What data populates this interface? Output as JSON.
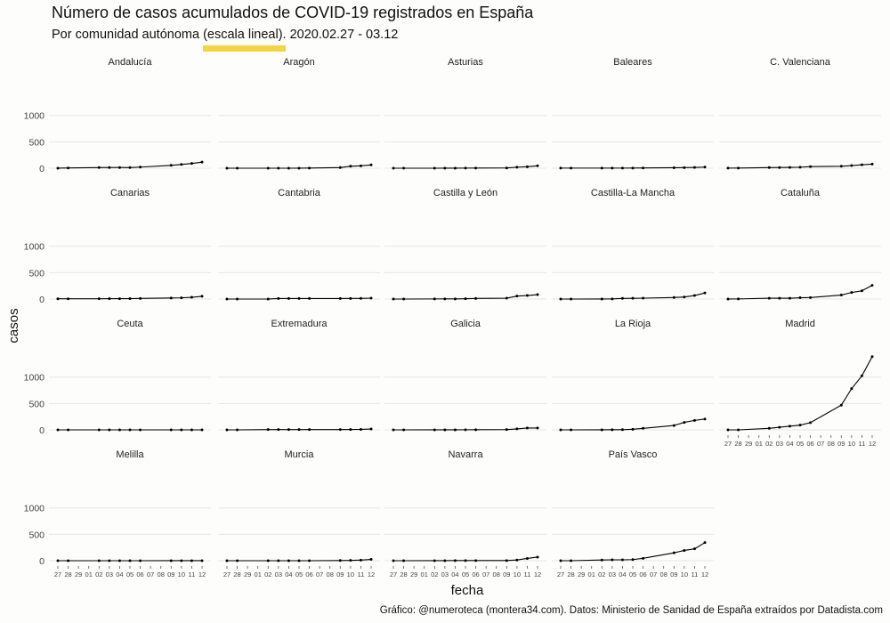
{
  "title": "Número de casos acumulados de COVID-19 registrados en España",
  "subtitle": "Por comunidad autónoma (escala lineal). 2020.02.27 - 03.12",
  "caption": "Gráfico: @numeroteca (montera34.com). Datos: Ministerio de Sanidad de España extraídos por Datadista.com",
  "colors": {
    "background": "#fdfdfb",
    "line": "#000000",
    "highlight": "#f5d442",
    "grid": "#e6e6e6"
  },
  "chart_data": {
    "type": "line",
    "xlabel": "fecha",
    "ylabel": "casos",
    "ylim": [
      0,
      1000
    ],
    "yticks": [
      0,
      500,
      1000
    ],
    "grid": true,
    "x": [
      "2020-02-27",
      "2020-02-28",
      "2020-02-29",
      "2020-03-01",
      "2020-03-02",
      "2020-03-03",
      "2020-03-04",
      "2020-03-05",
      "2020-03-06",
      "2020-03-07",
      "2020-03-08",
      "2020-03-09",
      "2020-03-10",
      "2020-03-11",
      "2020-03-12"
    ],
    "x_tick_labels": [
      "27",
      "28",
      "29",
      "01",
      "02",
      "03",
      "04",
      "05",
      "06",
      "07",
      "08",
      "09",
      "10",
      "11",
      "12"
    ],
    "panels": [
      {
        "name": "Andalucía",
        "values": [
          1,
          5,
          null,
          null,
          12,
          13,
          13,
          12,
          21,
          null,
          null,
          54,
          71,
          90,
          115
        ]
      },
      {
        "name": "Aragón",
        "values": [
          0,
          0,
          null,
          null,
          0,
          0,
          0,
          1,
          3,
          null,
          null,
          12,
          37,
          45,
          63
        ]
      },
      {
        "name": "Asturias",
        "values": [
          0,
          0,
          null,
          null,
          0,
          1,
          1,
          2,
          3,
          null,
          null,
          5,
          19,
          28,
          46
        ]
      },
      {
        "name": "Baleares",
        "values": [
          2,
          2,
          null,
          null,
          2,
          2,
          2,
          3,
          5,
          null,
          null,
          9,
          11,
          14,
          21
        ]
      },
      {
        "name": "C. Valenciana",
        "values": [
          2,
          3,
          null,
          null,
          12,
          13,
          15,
          19,
          30,
          null,
          null,
          37,
          50,
          65,
          77
        ]
      },
      {
        "name": "Canarias",
        "values": [
          5,
          5,
          null,
          null,
          6,
          7,
          7,
          8,
          11,
          null,
          null,
          20,
          23,
          33,
          52
        ]
      },
      {
        "name": "Cantabria",
        "values": [
          0,
          0,
          null,
          null,
          1,
          10,
          10,
          10,
          10,
          null,
          null,
          10,
          11,
          12,
          17
        ]
      },
      {
        "name": "Castilla y León",
        "values": [
          0,
          0,
          null,
          null,
          2,
          3,
          3,
          6,
          11,
          null,
          null,
          16,
          56,
          67,
          84
        ]
      },
      {
        "name": "Castilla-La Mancha",
        "values": [
          0,
          0,
          null,
          null,
          1,
          3,
          12,
          14,
          17,
          null,
          null,
          29,
          39,
          67,
          115
        ]
      },
      {
        "name": "Cataluña",
        "values": [
          1,
          2,
          null,
          null,
          15,
          15,
          15,
          25,
          28,
          null,
          null,
          75,
          124,
          156,
          260
        ]
      },
      {
        "name": "Ceuta",
        "values": [
          0,
          0,
          null,
          null,
          0,
          0,
          0,
          0,
          0,
          null,
          null,
          0,
          0,
          0,
          0
        ]
      },
      {
        "name": "Extremadura",
        "values": [
          0,
          0,
          null,
          null,
          6,
          6,
          6,
          6,
          6,
          null,
          null,
          6,
          7,
          9,
          16
        ]
      },
      {
        "name": "Galicia",
        "values": [
          0,
          0,
          null,
          null,
          1,
          1,
          1,
          2,
          3,
          null,
          null,
          6,
          18,
          35,
          35
        ]
      },
      {
        "name": "La Rioja",
        "values": [
          0,
          0,
          null,
          null,
          1,
          3,
          4,
          11,
          29,
          null,
          null,
          83,
          142,
          179,
          205
        ]
      },
      {
        "name": "Madrid",
        "values": [
          0,
          0,
          null,
          null,
          29,
          49,
          70,
          90,
          137,
          null,
          null,
          469,
          782,
          1024,
          1388
        ]
      },
      {
        "name": "Melilla",
        "values": [
          0,
          0,
          null,
          null,
          0,
          0,
          0,
          0,
          0,
          null,
          null,
          1,
          1,
          1,
          1
        ]
      },
      {
        "name": "Murcia",
        "values": [
          0,
          0,
          null,
          null,
          0,
          0,
          0,
          0,
          0,
          null,
          null,
          4,
          6,
          11,
          25
        ]
      },
      {
        "name": "Navarra",
        "values": [
          0,
          0,
          null,
          null,
          1,
          1,
          3,
          3,
          3,
          null,
          null,
          3,
          13,
          43,
          68
        ]
      },
      {
        "name": "País Vasco",
        "values": [
          0,
          0,
          null,
          null,
          13,
          17,
          17,
          21,
          45,
          null,
          null,
          149,
          195,
          225,
          343
        ]
      }
    ]
  }
}
